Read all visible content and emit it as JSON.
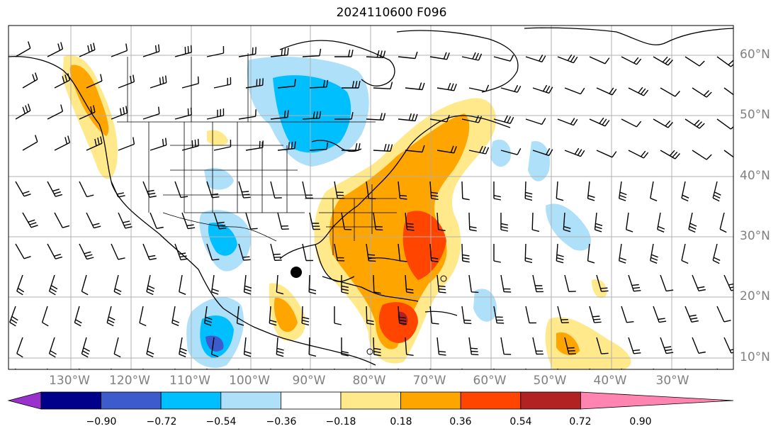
{
  "title": "2024110600 F096",
  "map": {
    "lat_labels": [
      "60°N",
      "50°N",
      "40°N",
      "30°N",
      "20°N",
      "10°N"
    ],
    "lon_labels": [
      "130°W",
      "120°W",
      "110°W",
      "100°W",
      "90°W",
      "80°W",
      "70°W",
      "60°W",
      "50°W",
      "40°W",
      "30°W"
    ],
    "gridline_color": "#b0b0b0",
    "wind_barbs": "black",
    "marker": "black-dot"
  },
  "colorbar": {
    "labels": [
      "−0.90",
      "−0.72",
      "−0.54",
      "−0.36",
      "−0.18",
      "0.18",
      "0.36",
      "0.54",
      "0.72",
      "0.90"
    ],
    "colors": [
      "#9932cc",
      "#00008b",
      "#3d5bcc",
      "#00bfff",
      "#aee0fa",
      "#ffffff",
      "#ffe98a",
      "#ffa500",
      "#ff4500",
      "#b22222",
      "#ff85b0"
    ]
  }
}
